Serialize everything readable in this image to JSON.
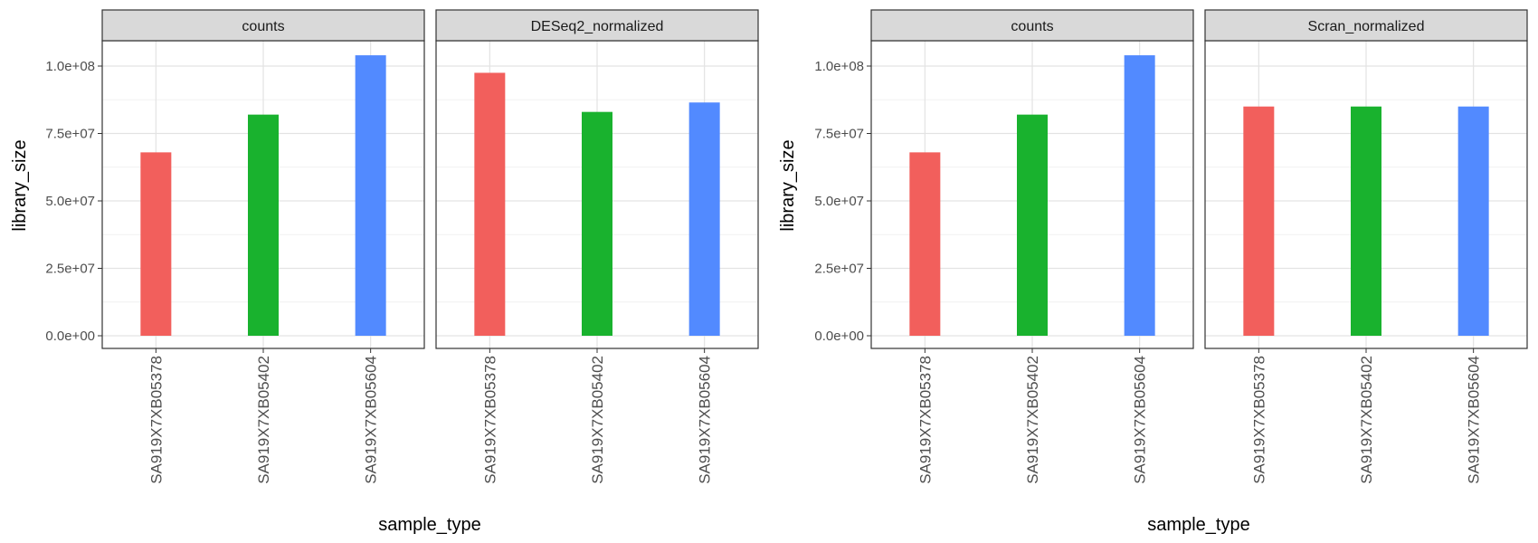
{
  "colors": {
    "SA919X7XB05378": "#F25F5C",
    "SA919X7XB05402": "#19B22E",
    "SA919X7XB05604": "#528AFF",
    "strip_fill": "#D9D9D9",
    "panel_border": "#333333",
    "grid_major": "#E3E3E3",
    "grid_minor": "#F1F1F1"
  },
  "chart_data": [
    {
      "type": "bar",
      "title": "",
      "xlabel": "sample_type",
      "ylabel": "library_size",
      "ylim": [
        0,
        112000000
      ],
      "yticks": [
        0,
        25000000,
        50000000,
        75000000,
        100000000
      ],
      "ytick_labels": [
        "0.0e+00",
        "2.5e+07",
        "5.0e+07",
        "7.5e+07",
        "1.0e+08"
      ],
      "grid": true,
      "legend": "none",
      "categories": [
        "SA919X7XB05378",
        "SA919X7XB05402",
        "SA919X7XB05604"
      ],
      "facets": [
        {
          "label": "counts",
          "values": [
            68000000,
            82000000,
            104000000
          ]
        },
        {
          "label": "DESeq2_normalized",
          "values": [
            97500000,
            83000000,
            86500000
          ]
        }
      ]
    },
    {
      "type": "bar",
      "title": "",
      "xlabel": "sample_type",
      "ylabel": "library_size",
      "ylim": [
        0,
        112000000
      ],
      "yticks": [
        0,
        25000000,
        50000000,
        75000000,
        100000000
      ],
      "ytick_labels": [
        "0.0e+00",
        "2.5e+07",
        "5.0e+07",
        "7.5e+07",
        "1.0e+08"
      ],
      "grid": true,
      "legend": "none",
      "categories": [
        "SA919X7XB05378",
        "SA919X7XB05402",
        "SA919X7XB05604"
      ],
      "facets": [
        {
          "label": "counts",
          "values": [
            68000000,
            82000000,
            104000000
          ]
        },
        {
          "label": "Scran_normalized",
          "values": [
            85000000,
            85000000,
            85000000
          ]
        }
      ]
    }
  ]
}
